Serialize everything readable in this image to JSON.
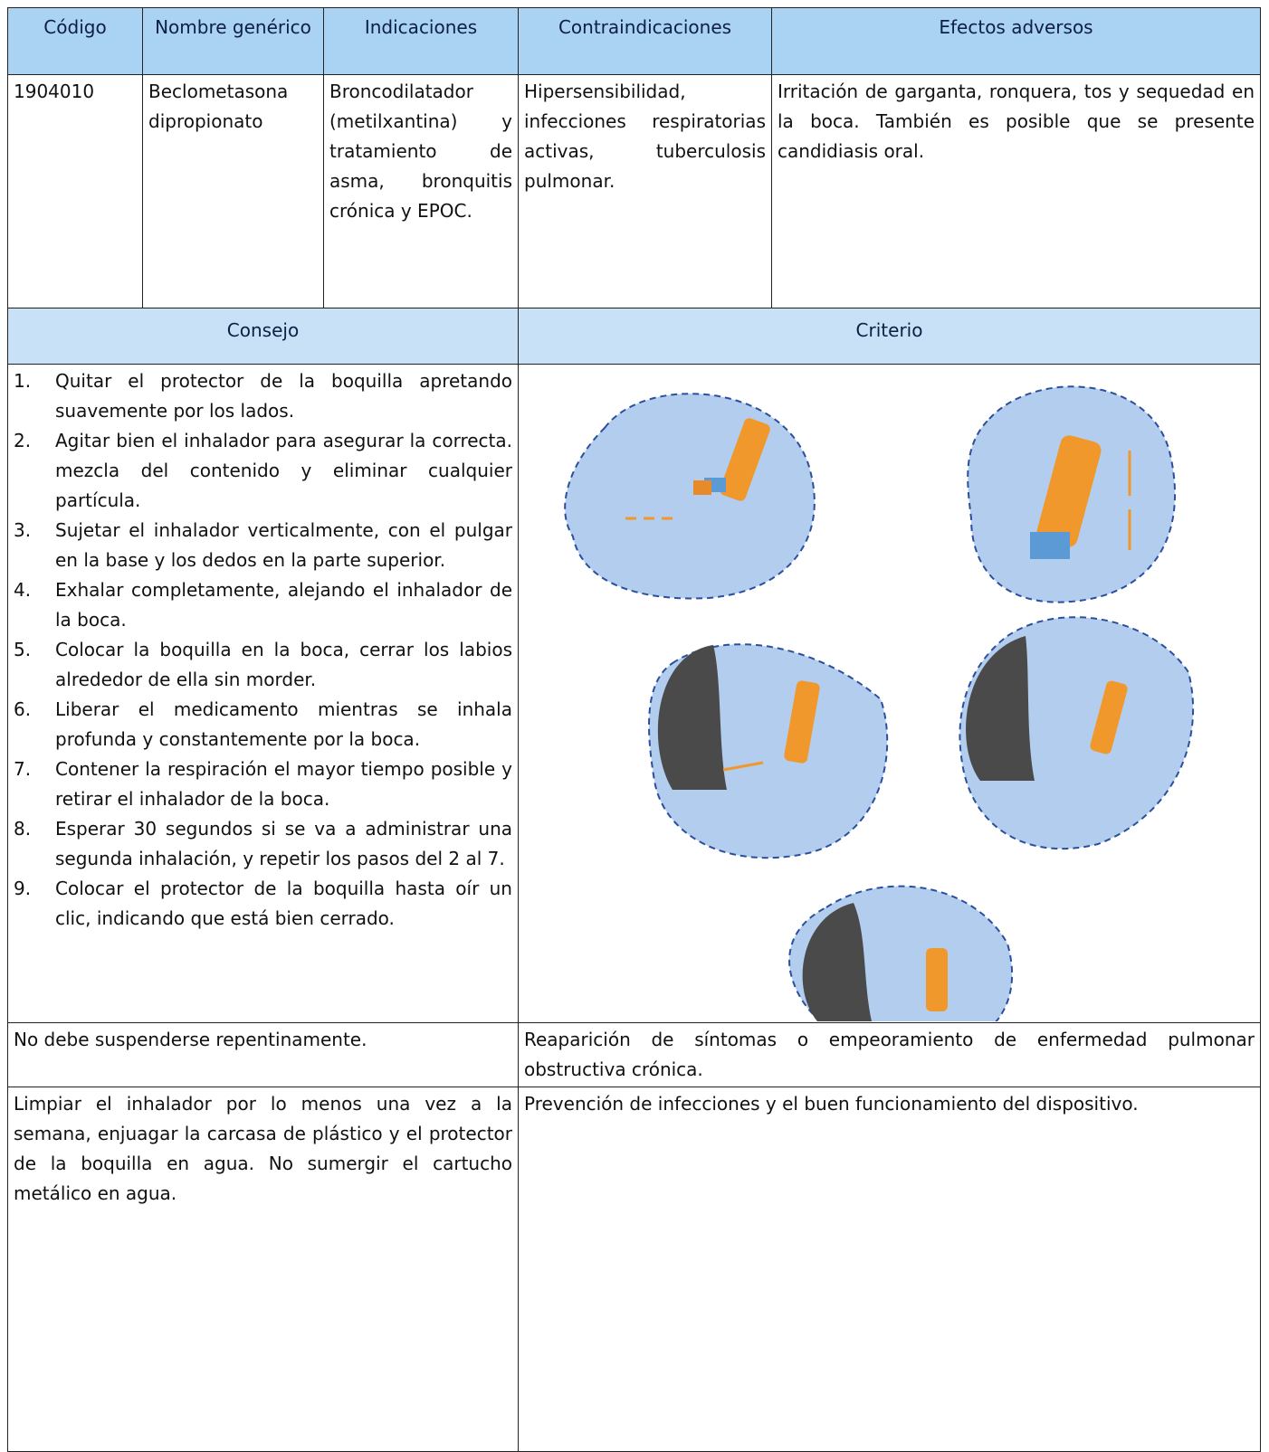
{
  "table": {
    "header": [
      "Código",
      "Nombre genérico",
      "Indicaciones",
      "Contraindicaciones",
      "Efectos adversos"
    ],
    "row": [
      "1904010",
      "Beclometasona dipropionato",
      "Broncodilatador (metilxantina) y tratamiento de asma, bronquitis crónica y EPOC.",
      "Hipersensibilidad, infecciones respiratorias activas, tuberculosis pulmonar.",
      "Irritación de garganta, ronquera, tos y sequedad en la boca. También es posible que se presente candidiasis oral."
    ],
    "subheader": [
      "Consejo",
      "Criterio"
    ],
    "steps": [
      {
        "number": "1.",
        "text": "Quitar el protector de la boquilla apretando suavemente por los lados."
      },
      {
        "number": "2.",
        "text": "Agitar bien el inhalador para asegurar la correcta. mezcla del contenido y eliminar cualquier partícula."
      },
      {
        "number": "3.",
        "text": "Sujetar el inhalador verticalmente, con el pulgar en la base y los dedos en la parte superior."
      },
      {
        "number": "4.",
        "text": "Exhalar completamente, alejando el inhalador de la boca."
      },
      {
        "number": "5.",
        "text": "Colocar la boquilla en la boca, cerrar los labios alrededor de ella sin morder."
      },
      {
        "number": "6.",
        "text": "Liberar el medicamento mientras se inhala profunda y constantemente por la boca."
      },
      {
        "number": "7.",
        "text": "Contener la respiración el mayor tiempo posible y retirar el inhalador de la boca."
      },
      {
        "number": "8.",
        "text": "Esperar 30 segundos si se va a administrar una segunda inhalación, y repetir los pasos del 2 al 7."
      },
      {
        "number": "9.",
        "text": "Colocar el protector de la boquilla hasta oír un clic, indicando que está bien cerrado."
      }
    ],
    "rows": [
      [
        "No debe suspenderse repentinamente.",
        "Reaparición de síntomas o empeoramiento de enfermedad pulmonar obstructiva crónica."
      ],
      [
        "Limpiar el inhalador por lo menos una vez a la semana, enjuagar la carcasa de plástico y el protector de la boquilla en agua. No sumergir el cartucho metálico en agua.",
        "Prevención de infecciones y el buen funcionamiento del dispositivo."
      ]
    ]
  }
}
